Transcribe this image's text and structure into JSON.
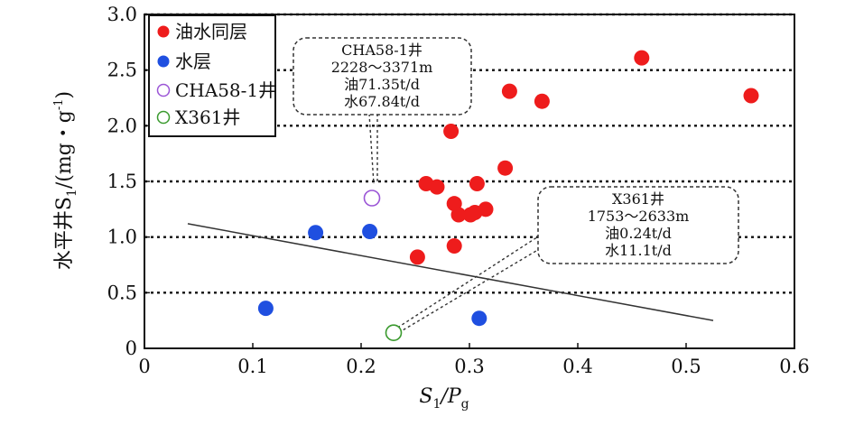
{
  "chart_data": {
    "type": "scatter",
    "xlabel": {
      "base": "S",
      "sub1": "1",
      "mid": "/P",
      "sub2": "g"
    },
    "ylabel": {
      "base": "水平井S",
      "sub1": "1",
      "unit_open": "/(mg・g",
      "sup": "-1",
      "unit_close": ")"
    },
    "xlim": [
      0,
      0.6
    ],
    "ylim": [
      0,
      3.0
    ],
    "xticks": [
      "0",
      "0.1",
      "0.2",
      "0.3",
      "0.4",
      "0.5",
      "0.6"
    ],
    "yticks": [
      "0",
      "0.5",
      "1.0",
      "1.5",
      "2.0",
      "2.5",
      "3.0"
    ],
    "reference_lines_y": [
      0.5,
      1.0,
      1.5,
      2.0,
      2.5,
      3.0
    ],
    "trend_line": {
      "x": [
        0.04,
        0.525
      ],
      "y": [
        1.12,
        0.25
      ]
    },
    "legend_position": "top-left",
    "series": [
      {
        "name": "油水同层",
        "marker": "filled-circle",
        "color": "#ee1c1c",
        "x": [
          0.252,
          0.26,
          0.27,
          0.283,
          0.286,
          0.286,
          0.29,
          0.301,
          0.307,
          0.305,
          0.315,
          0.333,
          0.337,
          0.367,
          0.459,
          0.56
        ],
        "y": [
          0.82,
          1.48,
          1.45,
          1.95,
          0.92,
          1.3,
          1.2,
          1.2,
          1.48,
          1.22,
          1.25,
          1.62,
          2.31,
          2.22,
          2.61,
          2.27
        ]
      },
      {
        "name": "水层",
        "marker": "filled-circle",
        "color": "#1f4fe0",
        "x": [
          0.112,
          0.158,
          0.208,
          0.309
        ],
        "y": [
          0.36,
          1.04,
          1.05,
          0.27
        ]
      },
      {
        "name": "CHA58-1井",
        "marker": "open-circle",
        "color": "#9b55d6",
        "x": [
          0.21
        ],
        "y": [
          1.35
        ]
      },
      {
        "name": "X361井",
        "marker": "open-circle",
        "color": "#3a9a2e",
        "x": [
          0.23
        ],
        "y": [
          0.14
        ]
      }
    ],
    "annotations": [
      {
        "target": "CHA58-1井",
        "lines": [
          "CHA58-1井",
          "2228～3371m",
          "油71.35t/d",
          "水67.84t/d"
        ]
      },
      {
        "target": "X361井",
        "lines": [
          "X361井",
          "1753～2633m",
          "油0.24t/d",
          "水11.1t/d"
        ]
      }
    ]
  }
}
